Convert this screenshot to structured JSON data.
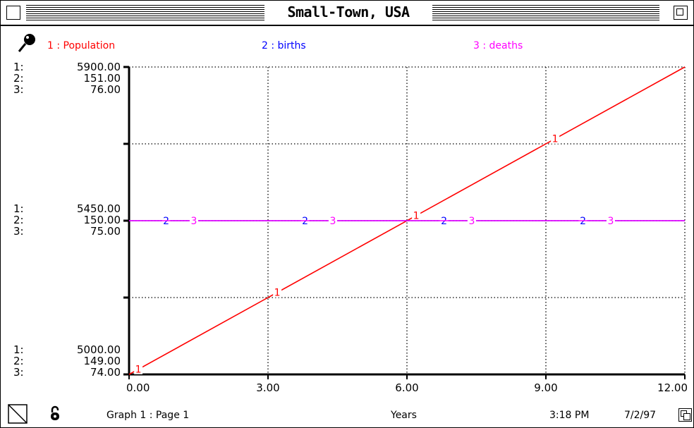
{
  "window": {
    "title": "Small-Town, USA"
  },
  "legend": [
    {
      "label": "1 : Population",
      "color": "#ff0000"
    },
    {
      "label": "2 : births",
      "color": "#0000ff"
    },
    {
      "label": "3 : deaths",
      "color": "#ff00ff"
    }
  ],
  "axis_blocks": [
    {
      "rows": [
        {
          "idx": "1:",
          "val": "5900.00"
        },
        {
          "idx": "2:",
          "val": "151.00"
        },
        {
          "idx": "3:",
          "val": "76.00"
        }
      ]
    },
    {
      "rows": [
        {
          "idx": "1:",
          "val": "5450.00"
        },
        {
          "idx": "2:",
          "val": "150.00"
        },
        {
          "idx": "3:",
          "val": "75.00"
        }
      ]
    },
    {
      "rows": [
        {
          "idx": "1:",
          "val": "5000.00"
        },
        {
          "idx": "2:",
          "val": "149.00"
        },
        {
          "idx": "3:",
          "val": "74.00"
        }
      ]
    }
  ],
  "footer": {
    "page": "Graph 1 : Page 1",
    "xlabel": "Years",
    "time": "3:18 PM",
    "date": "7/2/97"
  },
  "icons": {
    "pin": "pushpin-icon",
    "corner": "page-corner-icon",
    "lock": "padlock-icon",
    "resize": "resize-box-icon"
  },
  "chart_data": {
    "type": "line",
    "x_ticks": [
      "0.00",
      "3.00",
      "6.00",
      "9.00",
      "12.00"
    ],
    "xlim": [
      0,
      12
    ],
    "xlabel": "Years",
    "grid": true,
    "series": [
      {
        "name": "Population",
        "marker": "1",
        "color": "#ff0000",
        "ylim": [
          5000,
          5900
        ],
        "x": [
          0,
          12
        ],
        "y": [
          5000,
          5900
        ],
        "marker_x": [
          0.2,
          3.2,
          6.2,
          9.2
        ]
      },
      {
        "name": "births",
        "marker": "2",
        "color": "#0000ff",
        "ylim": [
          149,
          151
        ],
        "x": [
          0,
          12
        ],
        "y": [
          150,
          150
        ],
        "marker_x": [
          0.8,
          3.8,
          6.8,
          9.8
        ]
      },
      {
        "name": "deaths",
        "marker": "3",
        "color": "#ff00ff",
        "ylim": [
          74,
          76
        ],
        "x": [
          0,
          12
        ],
        "y": [
          75,
          75
        ],
        "marker_x": [
          1.4,
          4.4,
          7.4,
          10.4
        ]
      }
    ]
  }
}
